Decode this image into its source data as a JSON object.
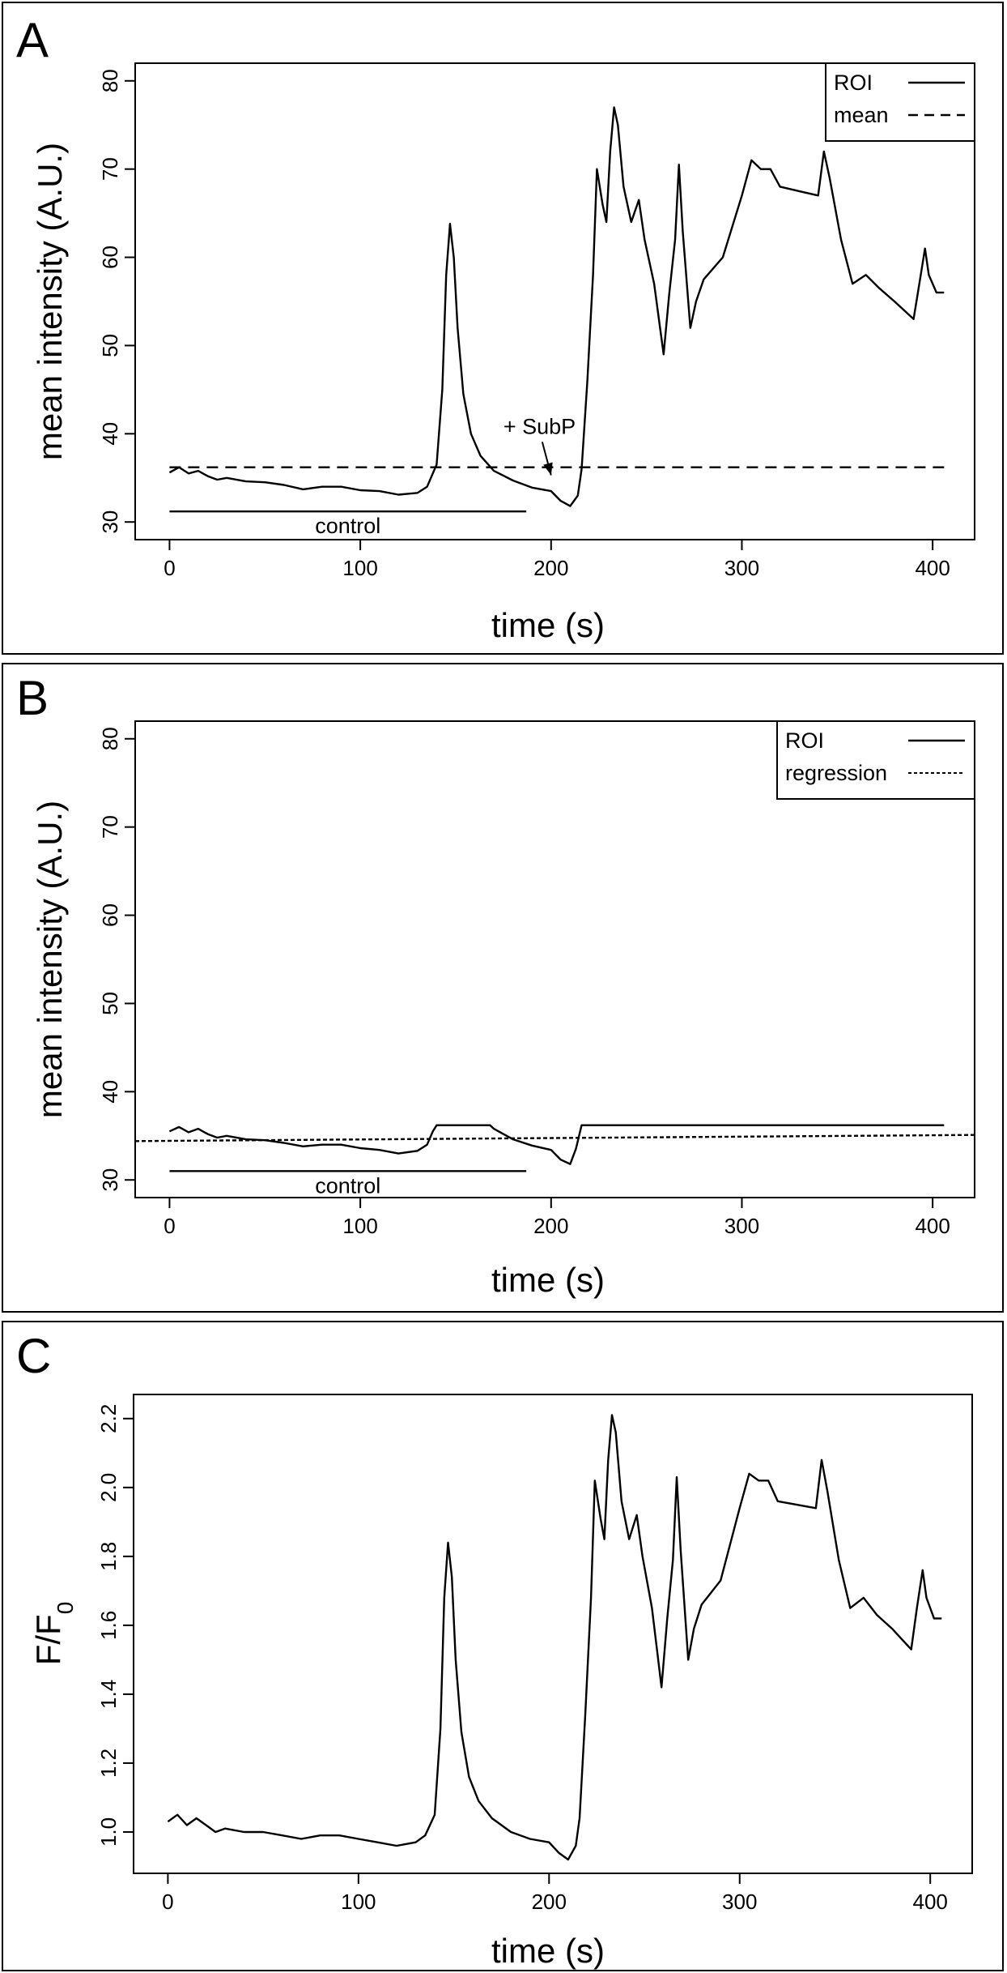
{
  "chart_data": [
    {
      "panel": "A",
      "type": "line",
      "xlabel": "time (s)",
      "ylabel": "mean intensity (A.U.)",
      "xlim": [
        -18,
        422
      ],
      "ylim": [
        28,
        82
      ],
      "xticks": [
        0,
        100,
        200,
        300,
        400
      ],
      "yticks": [
        30,
        40,
        50,
        60,
        70,
        80
      ],
      "legend": {
        "position": "top-right",
        "entries": [
          {
            "label": "ROI",
            "style": "solid"
          },
          {
            "label": "mean",
            "style": "dashed"
          }
        ]
      },
      "series": [
        {
          "name": "ROI",
          "style": "solid",
          "points": [
            [
              0,
              35.6
            ],
            [
              5,
              36.2
            ],
            [
              10,
              35.5
            ],
            [
              15,
              35.8
            ],
            [
              20,
              35.2
            ],
            [
              25,
              34.8
            ],
            [
              30,
              35.0
            ],
            [
              40,
              34.6
            ],
            [
              50,
              34.5
            ],
            [
              60,
              34.2
            ],
            [
              70,
              33.7
            ],
            [
              80,
              34.0
            ],
            [
              90,
              34.0
            ],
            [
              100,
              33.6
            ],
            [
              110,
              33.5
            ],
            [
              120,
              33.1
            ],
            [
              130,
              33.3
            ],
            [
              135,
              34.0
            ],
            [
              140,
              36.5
            ],
            [
              143,
              45.0
            ],
            [
              145,
              58.0
            ],
            [
              147,
              63.8
            ],
            [
              149,
              60.0
            ],
            [
              151,
              52.0
            ],
            [
              154,
              44.5
            ],
            [
              158,
              40.0
            ],
            [
              163,
              37.5
            ],
            [
              170,
              35.8
            ],
            [
              180,
              34.7
            ],
            [
              190,
              33.9
            ],
            [
              200,
              33.5
            ],
            [
              205,
              32.4
            ],
            [
              210,
              31.8
            ],
            [
              214,
              33.0
            ],
            [
              216,
              36.0
            ],
            [
              219,
              46.0
            ],
            [
              222,
              58.0
            ],
            [
              224,
              70.0
            ],
            [
              227,
              66.0
            ],
            [
              229,
              64.0
            ],
            [
              231,
              72.0
            ],
            [
              233,
              77.0
            ],
            [
              235,
              75.0
            ],
            [
              238,
              68.0
            ],
            [
              242,
              64.0
            ],
            [
              246,
              66.5
            ],
            [
              249,
              62.0
            ],
            [
              254,
              57.0
            ],
            [
              259,
              49.0
            ],
            [
              262,
              56.0
            ],
            [
              265,
              62.0
            ],
            [
              267,
              70.5
            ],
            [
              269,
              63.0
            ],
            [
              273,
              52.0
            ],
            [
              276,
              55.0
            ],
            [
              280,
              57.5
            ],
            [
              290,
              60.0
            ],
            [
              300,
              67.0
            ],
            [
              305,
              71.0
            ],
            [
              310,
              70.0
            ],
            [
              315,
              70.0
            ],
            [
              320,
              68.0
            ],
            [
              330,
              67.5
            ],
            [
              340,
              67.0
            ],
            [
              343,
              72.0
            ],
            [
              346,
              69.0
            ],
            [
              352,
              62.0
            ],
            [
              358,
              57.0
            ],
            [
              365,
              58.0
            ],
            [
              372,
              56.5
            ],
            [
              380,
              55.0
            ],
            [
              385,
              54.0
            ],
            [
              390,
              53.0
            ],
            [
              393,
              57.0
            ],
            [
              396,
              61.0
            ],
            [
              398,
              58.0
            ],
            [
              402,
              56.0
            ],
            [
              406,
              56.0
            ]
          ]
        },
        {
          "name": "mean",
          "style": "dashed",
          "points": [
            [
              0,
              36.2
            ],
            [
              406,
              36.2
            ]
          ]
        }
      ],
      "annotations": [
        {
          "text": "control",
          "type": "bracket",
          "x_start": 0,
          "x_end": 187,
          "y": 31.2
        },
        {
          "text": "+ SubP",
          "type": "arrow",
          "text_x": 175,
          "text_y": 40.0,
          "target_x": 200,
          "target_y": 35.3
        }
      ]
    },
    {
      "panel": "B",
      "type": "line",
      "xlabel": "time (s)",
      "ylabel": "mean intensity (A.U.)",
      "xlim": [
        -18,
        422
      ],
      "ylim": [
        28,
        82
      ],
      "xticks": [
        0,
        100,
        200,
        300,
        400
      ],
      "yticks": [
        30,
        40,
        50,
        60,
        70,
        80
      ],
      "legend": {
        "position": "top-right",
        "entries": [
          {
            "label": "ROI",
            "style": "solid"
          },
          {
            "label": "regression",
            "style": "dotted"
          }
        ]
      },
      "series": [
        {
          "name": "ROI",
          "style": "solid",
          "points": [
            [
              0,
              35.5
            ],
            [
              5,
              36.0
            ],
            [
              10,
              35.4
            ],
            [
              15,
              35.8
            ],
            [
              20,
              35.2
            ],
            [
              25,
              34.8
            ],
            [
              30,
              35.0
            ],
            [
              40,
              34.6
            ],
            [
              50,
              34.5
            ],
            [
              60,
              34.2
            ],
            [
              70,
              33.8
            ],
            [
              80,
              34.0
            ],
            [
              90,
              34.0
            ],
            [
              100,
              33.6
            ],
            [
              110,
              33.4
            ],
            [
              120,
              33.0
            ],
            [
              130,
              33.3
            ],
            [
              135,
              34.0
            ],
            [
              138,
              35.5
            ],
            [
              140,
              36.2
            ],
            [
              168,
              36.2
            ],
            [
              170,
              35.8
            ],
            [
              180,
              34.6
            ],
            [
              190,
              33.9
            ],
            [
              200,
              33.4
            ],
            [
              205,
              32.3
            ],
            [
              210,
              31.8
            ],
            [
              213,
              33.5
            ],
            [
              216,
              36.2
            ],
            [
              406,
              36.2
            ]
          ]
        },
        {
          "name": "regression",
          "style": "dotted",
          "points": [
            [
              -18,
              34.4
            ],
            [
              422,
              35.1
            ]
          ]
        }
      ],
      "annotations": [
        {
          "text": "control",
          "type": "bracket",
          "x_start": 0,
          "x_end": 187,
          "y": 31.0
        }
      ]
    },
    {
      "panel": "C",
      "type": "line",
      "xlabel": "time (s)",
      "ylabel": "F/F",
      "ylabel_subscript": "0",
      "xlim": [
        -18,
        422
      ],
      "ylim": [
        0.88,
        2.27
      ],
      "xticks": [
        0,
        100,
        200,
        300,
        400
      ],
      "yticks": [
        1.0,
        1.2,
        1.4,
        1.6,
        1.8,
        2.0,
        2.2
      ],
      "series": [
        {
          "name": "F/F0",
          "style": "solid",
          "points": [
            [
              0,
              1.03
            ],
            [
              5,
              1.05
            ],
            [
              10,
              1.02
            ],
            [
              15,
              1.04
            ],
            [
              20,
              1.02
            ],
            [
              25,
              1.0
            ],
            [
              30,
              1.01
            ],
            [
              40,
              1.0
            ],
            [
              50,
              1.0
            ],
            [
              60,
              0.99
            ],
            [
              70,
              0.98
            ],
            [
              80,
              0.99
            ],
            [
              90,
              0.99
            ],
            [
              100,
              0.98
            ],
            [
              110,
              0.97
            ],
            [
              120,
              0.96
            ],
            [
              130,
              0.97
            ],
            [
              135,
              0.99
            ],
            [
              140,
              1.05
            ],
            [
              143,
              1.3
            ],
            [
              145,
              1.68
            ],
            [
              147,
              1.84
            ],
            [
              149,
              1.74
            ],
            [
              151,
              1.5
            ],
            [
              154,
              1.29
            ],
            [
              158,
              1.16
            ],
            [
              163,
              1.09
            ],
            [
              170,
              1.04
            ],
            [
              180,
              1.0
            ],
            [
              190,
              0.98
            ],
            [
              200,
              0.97
            ],
            [
              205,
              0.94
            ],
            [
              210,
              0.92
            ],
            [
              214,
              0.96
            ],
            [
              216,
              1.04
            ],
            [
              219,
              1.34
            ],
            [
              222,
              1.68
            ],
            [
              224,
              2.02
            ],
            [
              227,
              1.91
            ],
            [
              229,
              1.85
            ],
            [
              231,
              2.08
            ],
            [
              233,
              2.21
            ],
            [
              235,
              2.16
            ],
            [
              238,
              1.96
            ],
            [
              242,
              1.85
            ],
            [
              246,
              1.92
            ],
            [
              249,
              1.8
            ],
            [
              254,
              1.65
            ],
            [
              259,
              1.42
            ],
            [
              262,
              1.62
            ],
            [
              265,
              1.79
            ],
            [
              267,
              2.03
            ],
            [
              269,
              1.82
            ],
            [
              273,
              1.5
            ],
            [
              276,
              1.59
            ],
            [
              280,
              1.66
            ],
            [
              290,
              1.73
            ],
            [
              300,
              1.94
            ],
            [
              305,
              2.04
            ],
            [
              310,
              2.02
            ],
            [
              315,
              2.02
            ],
            [
              320,
              1.96
            ],
            [
              330,
              1.95
            ],
            [
              340,
              1.94
            ],
            [
              343,
              2.08
            ],
            [
              346,
              1.99
            ],
            [
              352,
              1.79
            ],
            [
              358,
              1.65
            ],
            [
              365,
              1.68
            ],
            [
              372,
              1.63
            ],
            [
              380,
              1.59
            ],
            [
              385,
              1.56
            ],
            [
              390,
              1.53
            ],
            [
              393,
              1.65
            ],
            [
              396,
              1.76
            ],
            [
              398,
              1.68
            ],
            [
              402,
              1.62
            ],
            [
              406,
              1.62
            ]
          ]
        }
      ]
    }
  ]
}
